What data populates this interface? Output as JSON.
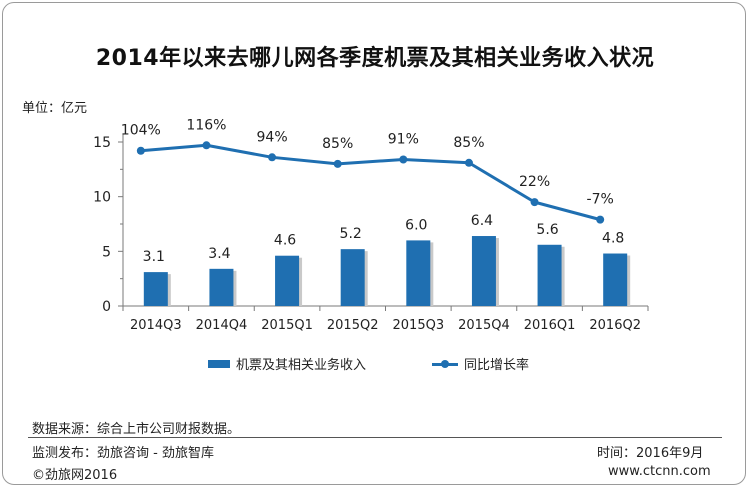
{
  "chart_data": {
    "type": "bar",
    "title": "2014年以来去哪儿网各季度机票及其相关业务收入状况",
    "unit_label": "单位：亿元",
    "categories": [
      "2014Q3",
      "2014Q4",
      "2015Q1",
      "2015Q2",
      "2015Q3",
      "2015Q4",
      "2016Q1",
      "2016Q2"
    ],
    "ylim": [
      0,
      15
    ],
    "yticks": [
      0,
      5,
      10,
      15
    ],
    "grid": false,
    "legend_position": "bottom",
    "series": [
      {
        "name": "机票及其相关业务收入",
        "kind": "bar",
        "color": "#1f6fb1",
        "values": [
          3.1,
          3.4,
          4.6,
          5.2,
          6.0,
          6.4,
          5.6,
          4.8
        ],
        "labels": [
          "3.1",
          "3.4",
          "4.6",
          "5.2",
          "6.0",
          "6.4",
          "5.6",
          "4.8"
        ]
      },
      {
        "name": "同比增长率",
        "kind": "line",
        "color": "#1f6fb1",
        "values": [
          104,
          116,
          94,
          85,
          91,
          85,
          22,
          -7
        ],
        "labels": [
          "104%",
          "116%",
          "94%",
          "85%",
          "91%",
          "85%",
          "22%",
          "-7%"
        ],
        "plot_values": [
          14.2,
          14.7,
          13.6,
          13.0,
          13.4,
          13.1,
          9.5,
          7.9
        ]
      }
    ]
  },
  "footer": {
    "source": "数据来源：综合上市公司财报数据。",
    "publisher": "监测发布：劲旅咨询 - 劲旅智库",
    "time": "时间：2016年9月",
    "copyright": "©劲旅网2016",
    "website": "www.ctcnn.com"
  }
}
